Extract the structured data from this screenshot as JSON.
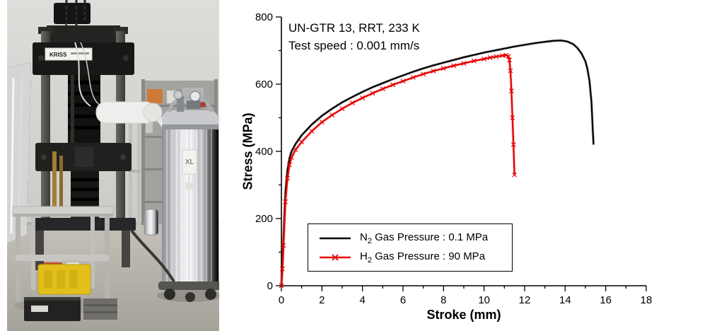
{
  "figure": {
    "photo": {
      "machine_plate": "KRISS",
      "dewar_label": "XL"
    },
    "chart": {
      "legend": [
        {
          "element": "N",
          "sub": "2",
          "rest": " Gas Pressure : 0.1 MPa"
        },
        {
          "element": "H",
          "sub": "2",
          "rest": " Gas Pressure : 90 MPa"
        }
      ]
    }
  },
  "chart_data": {
    "type": "line",
    "title": "",
    "xlabel": "Stroke (mm)",
    "ylabel": "Stress (MPa)",
    "xlim": [
      0,
      18
    ],
    "ylim": [
      0,
      800
    ],
    "xticks": [
      0,
      2,
      4,
      6,
      8,
      10,
      12,
      14,
      16,
      18
    ],
    "yticks": [
      0,
      200,
      400,
      600,
      800
    ],
    "x_minor_step": 1,
    "y_minor_step": 100,
    "grid": false,
    "legend_position": "inside-lower-left",
    "annotations": [
      "UN-GTR 13, RRT, 233 K",
      "Test speed : 0.001 mm/s"
    ],
    "series": [
      {
        "name": "N2 Gas Pressure : 0.1 MPa",
        "color": "#000000",
        "marker": "none",
        "points": [
          [
            0,
            0
          ],
          [
            0.05,
            60
          ],
          [
            0.1,
            140
          ],
          [
            0.2,
            280
          ],
          [
            0.3,
            345
          ],
          [
            0.4,
            380
          ],
          [
            0.5,
            400
          ],
          [
            0.7,
            422
          ],
          [
            1.0,
            448
          ],
          [
            1.5,
            480
          ],
          [
            2.0,
            506
          ],
          [
            2.5,
            527
          ],
          [
            3.0,
            546
          ],
          [
            3.5,
            562
          ],
          [
            4.0,
            577
          ],
          [
            4.5,
            591
          ],
          [
            5.0,
            603
          ],
          [
            5.5,
            615
          ],
          [
            6.0,
            626
          ],
          [
            6.5,
            637
          ],
          [
            7.0,
            647
          ],
          [
            7.5,
            656
          ],
          [
            8.0,
            664
          ],
          [
            8.5,
            672
          ],
          [
            9.0,
            680
          ],
          [
            9.5,
            687
          ],
          [
            10.0,
            694
          ],
          [
            10.5,
            700
          ],
          [
            11.0,
            706
          ],
          [
            11.5,
            712
          ],
          [
            12.0,
            717
          ],
          [
            12.5,
            722
          ],
          [
            13.0,
            726
          ],
          [
            13.4,
            729
          ],
          [
            13.8,
            730
          ],
          [
            14.1,
            727
          ],
          [
            14.4,
            719
          ],
          [
            14.6,
            708
          ],
          [
            14.8,
            692
          ],
          [
            15.0,
            668
          ],
          [
            15.1,
            645
          ],
          [
            15.2,
            610
          ],
          [
            15.3,
            545
          ],
          [
            15.35,
            480
          ],
          [
            15.4,
            420
          ]
        ]
      },
      {
        "name": "H2 Gas Pressure : 90 MPa",
        "color": "#e60000",
        "marker": "x",
        "points": [
          [
            0,
            0
          ],
          [
            0.05,
            50
          ],
          [
            0.1,
            120
          ],
          [
            0.2,
            250
          ],
          [
            0.3,
            320
          ],
          [
            0.4,
            360
          ],
          [
            0.5,
            382
          ],
          [
            0.7,
            405
          ],
          [
            1.0,
            428
          ],
          [
            1.5,
            460
          ],
          [
            2.0,
            487
          ],
          [
            2.5,
            508
          ],
          [
            3.0,
            527
          ],
          [
            3.5,
            544
          ],
          [
            4.0,
            559
          ],
          [
            4.5,
            573
          ],
          [
            5.0,
            586
          ],
          [
            5.5,
            598
          ],
          [
            6.0,
            609
          ],
          [
            6.5,
            620
          ],
          [
            7.0,
            630
          ],
          [
            7.5,
            639
          ],
          [
            8.0,
            647
          ],
          [
            8.5,
            655
          ],
          [
            9.0,
            662
          ],
          [
            9.5,
            669
          ],
          [
            10.0,
            675
          ],
          [
            10.3,
            679
          ],
          [
            10.6,
            682
          ],
          [
            10.9,
            685
          ],
          [
            11.1,
            686
          ],
          [
            11.2,
            683
          ],
          [
            11.25,
            672
          ],
          [
            11.3,
            640
          ],
          [
            11.35,
            580
          ],
          [
            11.4,
            500
          ],
          [
            11.45,
            420
          ],
          [
            11.5,
            330
          ]
        ]
      }
    ]
  }
}
